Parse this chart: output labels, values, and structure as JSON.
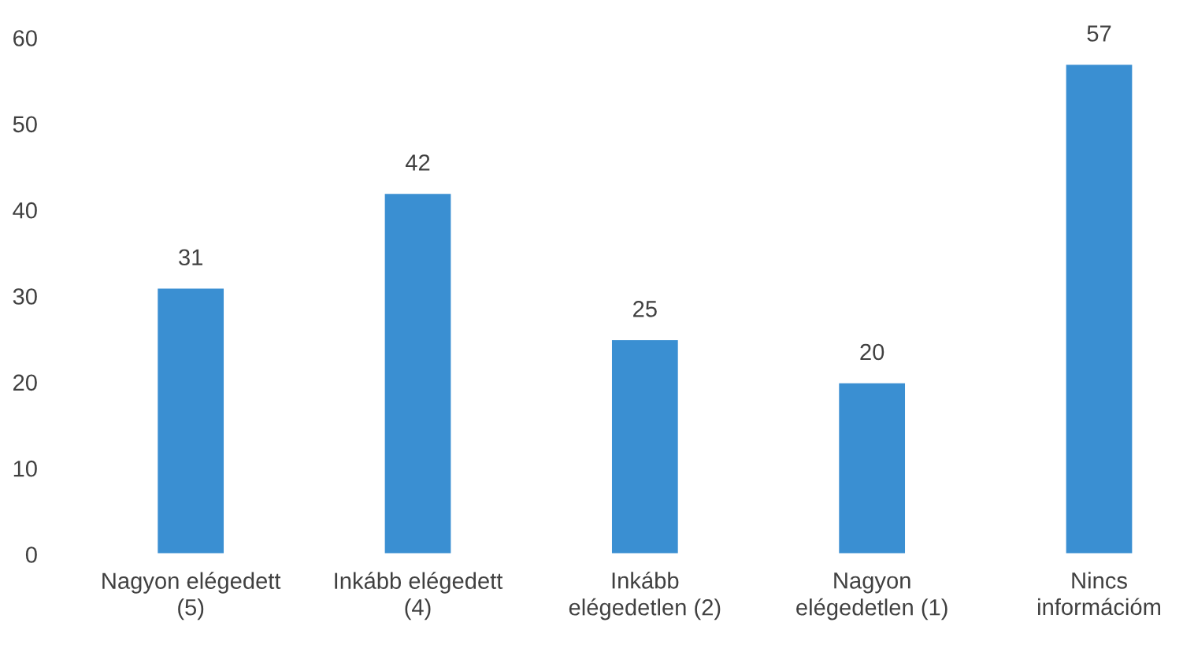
{
  "chart_data": {
    "type": "bar",
    "categories": [
      "Nagyon elégedett\n(5)",
      "Inkább elégedett\n(4)",
      "Inkább\nelégedetlen (2)",
      "Nagyon\nelégedetlen (1)",
      "Nincs\ninformációm"
    ],
    "values": [
      31,
      42,
      25,
      20,
      57
    ],
    "color": "#3a8fd2",
    "ylim": [
      0,
      60
    ],
    "yticks": [
      0,
      10,
      20,
      30,
      40,
      50,
      60
    ],
    "data_labels": true,
    "grid": false,
    "legend": false
  }
}
